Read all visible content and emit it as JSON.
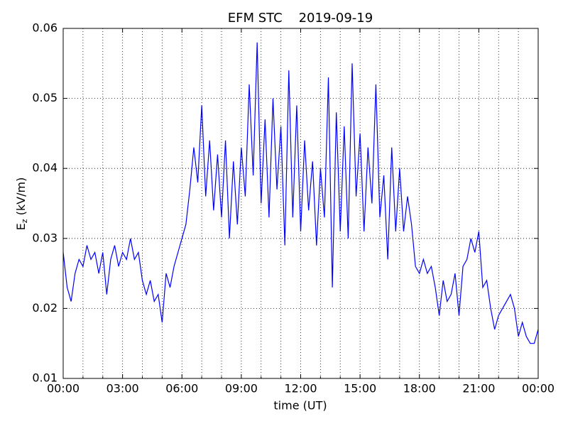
{
  "chart_data": {
    "type": "line",
    "title": "EFM STC    2019-09-19",
    "xlabel": "time (UT)",
    "ylabel": {
      "main": "E",
      "sub": "z",
      "rest": " (kV/m)"
    },
    "x": [
      0,
      0.2,
      0.4,
      0.6,
      0.8,
      1,
      1.2,
      1.4,
      1.6,
      1.8,
      2,
      2.2,
      2.4,
      2.6,
      2.8,
      3,
      3.2,
      3.4,
      3.6,
      3.8,
      4,
      4.2,
      4.4,
      4.6,
      4.8,
      5,
      5.2,
      5.4,
      5.6,
      5.8,
      6,
      6.2,
      6.4,
      6.6,
      6.8,
      7,
      7.2,
      7.4,
      7.6,
      7.8,
      8,
      8.2,
      8.4,
      8.6,
      8.8,
      9,
      9.2,
      9.4,
      9.6,
      9.8,
      10,
      10.2,
      10.4,
      10.6,
      10.8,
      11,
      11.2,
      11.4,
      11.6,
      11.8,
      12,
      12.2,
      12.4,
      12.6,
      12.8,
      13,
      13.2,
      13.4,
      13.6,
      13.8,
      14,
      14.2,
      14.4,
      14.6,
      14.8,
      15,
      15.2,
      15.4,
      15.6,
      15.8,
      16,
      16.2,
      16.4,
      16.6,
      16.8,
      17,
      17.2,
      17.4,
      17.6,
      17.8,
      18,
      18.2,
      18.4,
      18.6,
      18.8,
      19,
      19.2,
      19.4,
      19.6,
      19.8,
      20,
      20.2,
      20.4,
      20.6,
      20.8,
      21,
      21.2,
      21.4,
      21.6,
      21.8,
      22,
      22.2,
      22.4,
      22.6,
      22.8,
      23,
      23.2,
      23.4,
      23.6,
      23.8,
      24
    ],
    "series": [
      {
        "name": "Ez",
        "color": "#0000ff",
        "values": [
          0.028,
          0.023,
          0.021,
          0.025,
          0.027,
          0.026,
          0.029,
          0.027,
          0.028,
          0.025,
          0.028,
          0.022,
          0.027,
          0.029,
          0.026,
          0.028,
          0.027,
          0.03,
          0.027,
          0.028,
          0.024,
          0.022,
          0.024,
          0.021,
          0.022,
          0.018,
          0.025,
          0.023,
          0.026,
          0.028,
          0.03,
          0.032,
          0.037,
          0.043,
          0.038,
          0.049,
          0.036,
          0.044,
          0.034,
          0.042,
          0.033,
          0.044,
          0.03,
          0.041,
          0.032,
          0.043,
          0.036,
          0.052,
          0.039,
          0.058,
          0.035,
          0.047,
          0.033,
          0.05,
          0.037,
          0.046,
          0.029,
          0.054,
          0.033,
          0.049,
          0.031,
          0.044,
          0.034,
          0.041,
          0.029,
          0.04,
          0.033,
          0.053,
          0.023,
          0.048,
          0.031,
          0.046,
          0.03,
          0.055,
          0.036,
          0.045,
          0.031,
          0.043,
          0.035,
          0.052,
          0.033,
          0.039,
          0.027,
          0.043,
          0.031,
          0.04,
          0.031,
          0.036,
          0.032,
          0.026,
          0.025,
          0.027,
          0.025,
          0.026,
          0.023,
          0.019,
          0.024,
          0.021,
          0.022,
          0.025,
          0.019,
          0.026,
          0.027,
          0.03,
          0.028,
          0.031,
          0.023,
          0.024,
          0.02,
          0.017,
          0.019,
          0.02,
          0.021,
          0.022,
          0.02,
          0.016,
          0.018,
          0.016,
          0.015,
          0.015,
          0.017
        ]
      }
    ],
    "xlim": [
      0,
      24
    ],
    "ylim": [
      0.01,
      0.06
    ],
    "xticks": [
      {
        "value": 0,
        "label": "00:00"
      },
      {
        "value": 3,
        "label": "03:00"
      },
      {
        "value": 6,
        "label": "06:00"
      },
      {
        "value": 9,
        "label": "09:00"
      },
      {
        "value": 12,
        "label": "12:00"
      },
      {
        "value": 15,
        "label": "15:00"
      },
      {
        "value": 18,
        "label": "18:00"
      },
      {
        "value": 21,
        "label": "21:00"
      },
      {
        "value": 24,
        "label": "00:00"
      }
    ],
    "xminorticks": [
      1,
      2,
      4,
      5,
      7,
      8,
      10,
      11,
      13,
      14,
      16,
      17,
      19,
      20,
      22,
      23
    ],
    "yticks": [
      0.01,
      0.02,
      0.03,
      0.04,
      0.05,
      0.06
    ],
    "grid": true
  }
}
